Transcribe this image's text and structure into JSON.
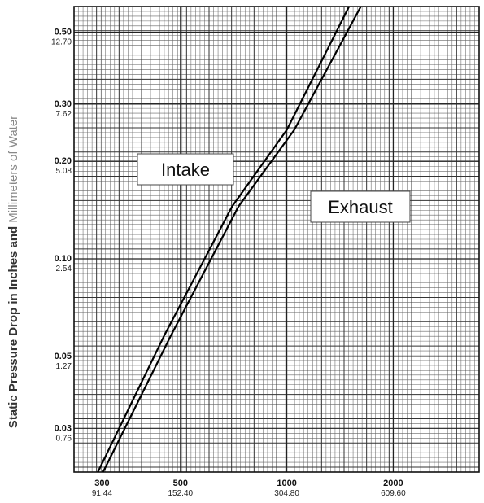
{
  "chart_data": {
    "type": "line",
    "title": "",
    "xlabel": "",
    "ylabel_bold": "Static Pressure Drop in Inches and",
    "ylabel_thin": "Millimeters of Water",
    "x_scale": "log",
    "y_scale": "log",
    "xlim": [
      250,
      3500
    ],
    "ylim": [
      0.022,
      0.6
    ],
    "grid": true,
    "x_ticks": [
      {
        "value": 300,
        "label": "300",
        "sublabel": "91.44"
      },
      {
        "value": 500,
        "label": "500",
        "sublabel": "152.40"
      },
      {
        "value": 1000,
        "label": "1000",
        "sublabel": "304.80"
      },
      {
        "value": 2000,
        "label": "2000",
        "sublabel": "609.60"
      }
    ],
    "y_ticks": [
      {
        "value": 0.5,
        "label": "0.50",
        "sublabel": "12.70"
      },
      {
        "value": 0.3,
        "label": "0.30",
        "sublabel": "7.62"
      },
      {
        "value": 0.2,
        "label": "0.20",
        "sublabel": "5.08"
      },
      {
        "value": 0.1,
        "label": "0.10",
        "sublabel": "2.54"
      },
      {
        "value": 0.05,
        "label": "0.05",
        "sublabel": "1.27"
      },
      {
        "value": 0.03,
        "label": "0.03",
        "sublabel": "0.76"
      }
    ],
    "series": [
      {
        "name": "Intake",
        "x": [
          292,
          450,
          700,
          1000,
          1500
        ],
        "y": [
          0.022,
          0.058,
          0.145,
          0.25,
          0.6
        ]
      },
      {
        "name": "Exhaust",
        "x": [
          302,
          470,
          730,
          1050,
          1620
        ],
        "y": [
          0.022,
          0.058,
          0.145,
          0.25,
          0.6
        ]
      }
    ],
    "annotations": [
      {
        "text": "Intake",
        "series": "Intake"
      },
      {
        "text": "Exhaust",
        "series": "Exhaust"
      }
    ]
  }
}
